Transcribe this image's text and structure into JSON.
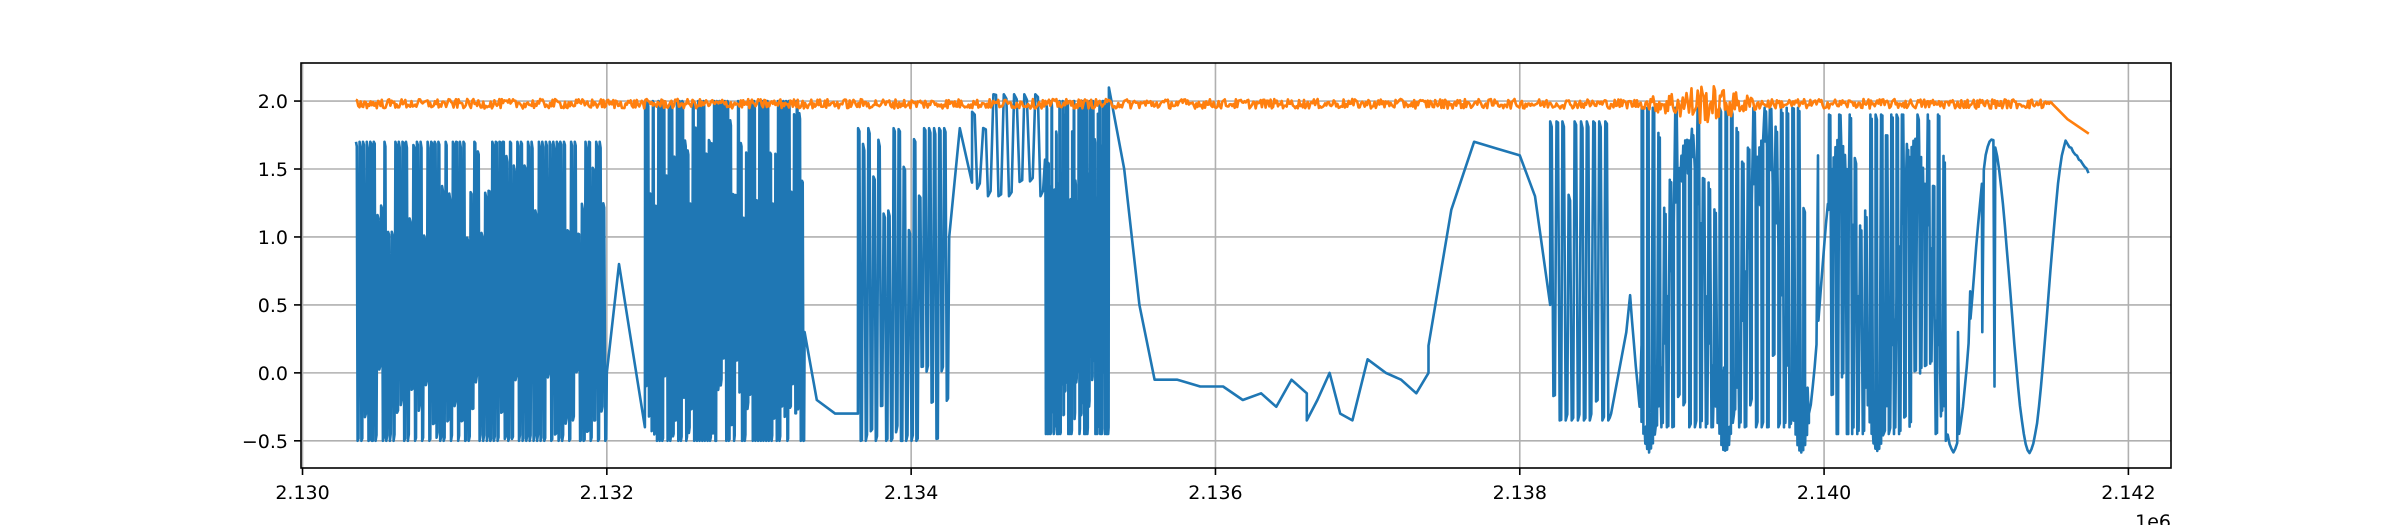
{
  "chart_data": {
    "type": "line",
    "title": "",
    "xlabel": "",
    "ylabel": "",
    "x_offset_label": "1e6",
    "xlim": [
      2.12999,
      2.14228
    ],
    "ylim": [
      -0.7,
      2.28
    ],
    "grid": true,
    "legend": "none",
    "x_ticks": [
      2.13,
      2.132,
      2.134,
      2.136,
      2.138,
      2.14,
      2.142
    ],
    "x_tick_labels": [
      "2.130",
      "2.132",
      "2.134",
      "2.136",
      "2.138",
      "2.140",
      "2.142"
    ],
    "y_ticks": [
      -0.5,
      0.0,
      0.5,
      1.0,
      1.5,
      2.0
    ],
    "y_tick_labels": [
      "−0.5",
      "0.0",
      "0.5",
      "1.0",
      "1.5",
      "2.0"
    ],
    "x_start": 2.13035,
    "x_end": 2.14174,
    "series": [
      {
        "color": "#1f77b4",
        "segments": [
          {
            "x0": 2.13035,
            "x1": 2.132,
            "kind": "switching",
            "low": -0.5,
            "high": 1.7,
            "edges": 140
          },
          {
            "x0": 2.132,
            "x1": 2.13225,
            "kind": "points",
            "points": [
              [
                2.132,
                0.0
              ],
              [
                2.13208,
                0.8
              ],
              [
                2.13215,
                0.3
              ],
              [
                2.13225,
                -0.4
              ]
            ]
          },
          {
            "x0": 2.13225,
            "x1": 2.1333,
            "kind": "switching",
            "low": -0.5,
            "high": 2.0,
            "edges": 120
          },
          {
            "x0": 2.1333,
            "x1": 2.13365,
            "kind": "points",
            "points": [
              [
                2.1333,
                0.3
              ],
              [
                2.13338,
                -0.2
              ],
              [
                2.1335,
                -0.3
              ],
              [
                2.13365,
                -0.3
              ]
            ]
          },
          {
            "x0": 2.13365,
            "x1": 2.13425,
            "kind": "switching",
            "low": -0.5,
            "high": 1.8,
            "edges": 36
          },
          {
            "x0": 2.13425,
            "x1": 2.1344,
            "kind": "points",
            "points": [
              [
                2.13425,
                1.0
              ],
              [
                2.13432,
                1.8
              ],
              [
                2.1344,
                1.4
              ]
            ]
          },
          {
            "x0": 2.1344,
            "x1": 2.13488,
            "kind": "switching",
            "low": 1.3,
            "high": 2.05,
            "edges": 14
          },
          {
            "x0": 2.13488,
            "x1": 2.1353,
            "kind": "switching",
            "low": -0.45,
            "high": 2.0,
            "edges": 80
          },
          {
            "x0": 2.1353,
            "x1": 2.1366,
            "kind": "points",
            "points": [
              [
                2.1353,
                2.1
              ],
              [
                2.1354,
                1.5
              ],
              [
                2.1355,
                0.5
              ],
              [
                2.1356,
                -0.05
              ],
              [
                2.13575,
                -0.05
              ],
              [
                2.1359,
                -0.1
              ],
              [
                2.13605,
                -0.1
              ],
              [
                2.13618,
                -0.2
              ],
              [
                2.1363,
                -0.15
              ],
              [
                2.1364,
                -0.25
              ],
              [
                2.1365,
                -0.05
              ],
              [
                2.1366,
                -0.15
              ]
            ]
          },
          {
            "x0": 2.1366,
            "x1": 2.1369,
            "kind": "points",
            "points": [
              [
                2.1366,
                -0.35
              ],
              [
                2.13667,
                -0.2
              ],
              [
                2.13675,
                0.0
              ],
              [
                2.13682,
                -0.3
              ],
              [
                2.1369,
                -0.35
              ]
            ]
          },
          {
            "x0": 2.1369,
            "x1": 2.1374,
            "kind": "points",
            "points": [
              [
                2.1369,
                -0.35
              ],
              [
                2.137,
                0.1
              ],
              [
                2.13712,
                0.0
              ],
              [
                2.13722,
                -0.05
              ],
              [
                2.13732,
                -0.15
              ],
              [
                2.1374,
                0.0
              ]
            ]
          },
          {
            "x0": 2.1374,
            "x1": 2.1382,
            "kind": "points",
            "points": [
              [
                2.1374,
                0.2
              ],
              [
                2.13755,
                1.2
              ],
              [
                2.1377,
                1.7
              ],
              [
                2.13785,
                1.65
              ],
              [
                2.138,
                1.6
              ],
              [
                2.1381,
                1.3
              ],
              [
                2.1382,
                0.5
              ]
            ]
          },
          {
            "x0": 2.1382,
            "x1": 2.1386,
            "kind": "switching",
            "low": -0.35,
            "high": 1.85,
            "edges": 20
          },
          {
            "x0": 2.1386,
            "x1": 2.1388,
            "kind": "points",
            "points": [
              [
                2.1386,
                -0.3
              ],
              [
                2.1387,
                0.3
              ],
              [
                2.1388,
                0.2
              ]
            ]
          },
          {
            "x0": 2.1388,
            "x1": 2.1399,
            "kind": "switching",
            "low": -0.4,
            "high": 1.95,
            "edges": 60
          },
          {
            "x0": 2.1399,
            "x1": 2.14003,
            "kind": "points",
            "points": [
              [
                2.1399,
                -0.3
              ],
              [
                2.13996,
                1.6
              ],
              [
                2.14003,
                1.2
              ]
            ]
          },
          {
            "x0": 2.14003,
            "x1": 2.1408,
            "kind": "switching",
            "low": -0.45,
            "high": 1.9,
            "edges": 45
          },
          {
            "x0": 2.1408,
            "x1": 2.14112,
            "kind": "points",
            "points": [
              [
                2.1408,
                -0.5
              ],
              [
                2.14088,
                0.3
              ],
              [
                2.14096,
                0.6
              ],
              [
                2.14104,
                0.3
              ],
              [
                2.14112,
                -0.1
              ]
            ]
          },
          {
            "x0": 2.14112,
            "x1": 2.14174,
            "kind": "sine",
            "low": -0.58,
            "high": 1.72,
            "period": 0.0005,
            "peaks": [
              2.1391,
              2.13962,
              2.14012,
              2.14062,
              2.14112,
              2.14158
            ],
            "end_value": 1.47
          }
        ]
      },
      {
        "color": "#ff7f0e",
        "base": 1.98,
        "noise": 0.035,
        "burst": {
          "x0": 2.1388,
          "x1": 2.1396,
          "amplitude": 0.12
        },
        "tail": [
          [
            2.1415,
            1.97
          ],
          [
            2.1416,
            1.88
          ],
          [
            2.14174,
            1.75
          ]
        ]
      }
    ]
  }
}
